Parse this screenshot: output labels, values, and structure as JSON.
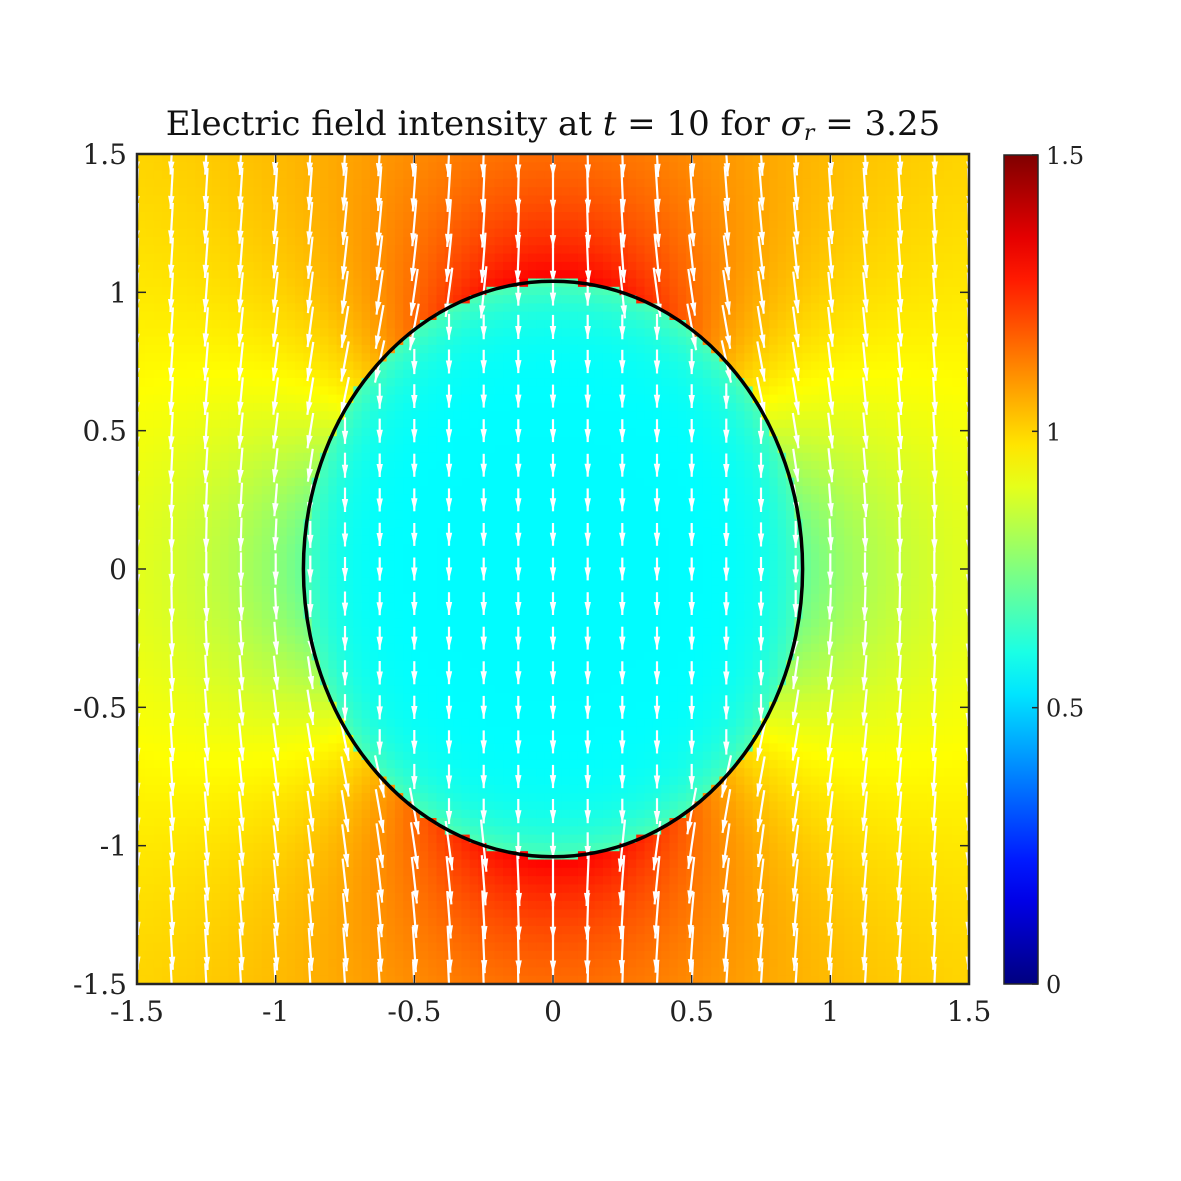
{
  "title": {
    "prefix": "Electric field intensity at ",
    "t_symbol": "t",
    "eq1": " = 10 for ",
    "sigma_symbol": "σ",
    "sigma_sub": "r",
    "eq2": " = 3.25"
  },
  "colors": {
    "boundary": "#000000",
    "arrows": "#ffffff",
    "colormap": "jet"
  },
  "chart_data": {
    "type": "heatmap",
    "subtype": "field magnitude with quiver overlay and circular inclusion boundary",
    "xlim": [
      -1.5,
      1.5
    ],
    "ylim": [
      -1.5,
      1.5
    ],
    "x_ticks": [
      "-1.5",
      "-1",
      "-0.5",
      "0",
      "0.5",
      "1",
      "1.5"
    ],
    "y_ticks": [
      "1.5",
      "1",
      "0.5",
      "0",
      "-0.5",
      "-1",
      "-1.5"
    ],
    "x_tick_values": [
      -1.5,
      -1,
      -0.5,
      0,
      0.5,
      1,
      1.5
    ],
    "y_tick_values": [
      1.5,
      1,
      0.5,
      0,
      -0.5,
      -1,
      -1.5
    ],
    "colorbar": {
      "range": [
        0,
        1.5
      ],
      "ticks": [
        "0",
        "0.5",
        "1",
        "1.5"
      ],
      "tick_values": [
        0,
        0.5,
        1,
        1.5
      ]
    },
    "boundary": {
      "shape": "ellipse",
      "center": [
        0,
        0
      ],
      "semi_axis_x": 0.9,
      "semi_axis_y": 1.04
    },
    "field": {
      "direction": "-y",
      "interior_magnitude": 0.56,
      "max_magnitude_near_poles": 1.32,
      "far_field_magnitude": 1.0
    },
    "quiver_grid": {
      "nx": 25,
      "ny": 25
    },
    "grid": false,
    "legend": "none"
  }
}
